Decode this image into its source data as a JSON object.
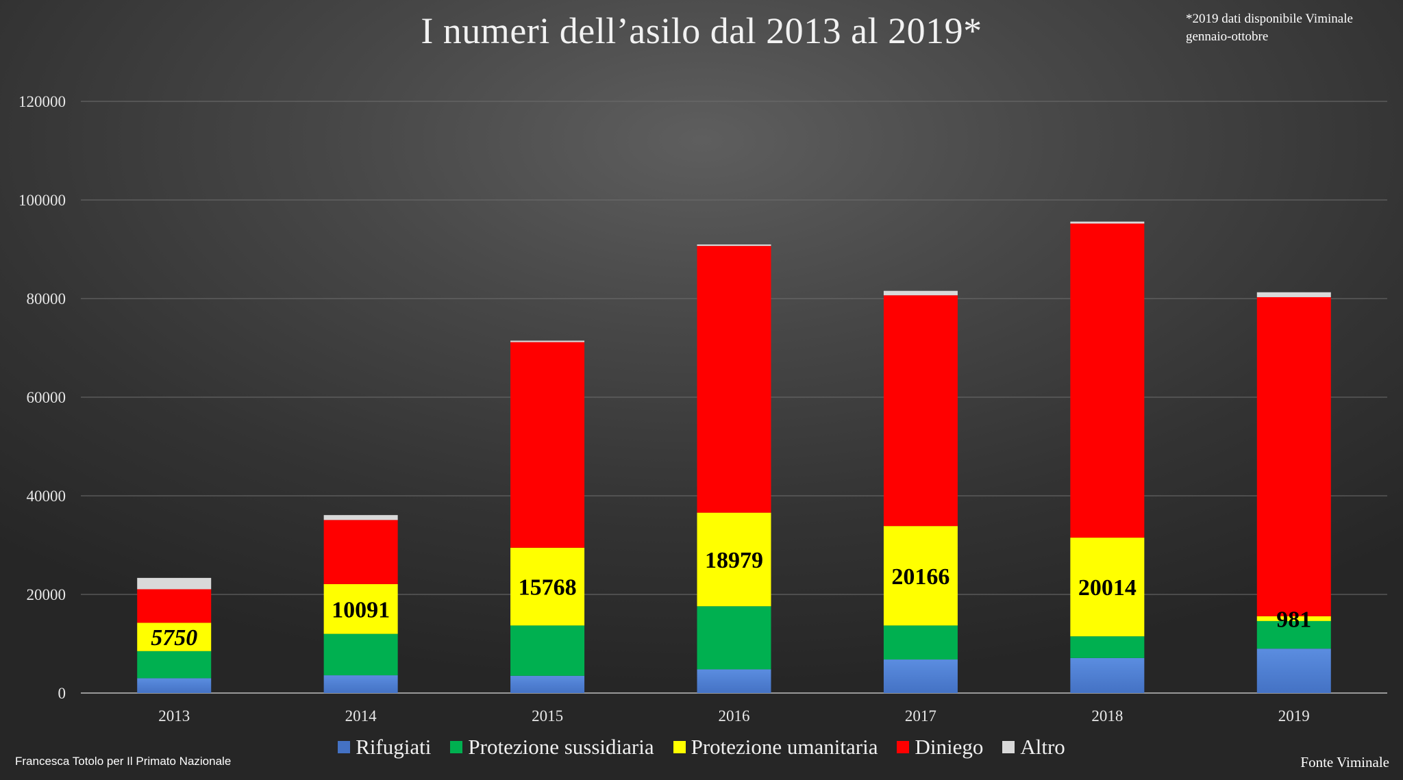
{
  "title": "I numeri dell’asilo dal 2013 al 2019*",
  "note_lines": [
    "*2019 dati disponibile Viminale",
    "gennaio-ottobre"
  ],
  "credit": "Francesca Totolo per Il Primato Nazionale",
  "source": "Fonte Viminale",
  "colors": {
    "rifugiati": "#4472c4",
    "sussidiaria": "#00b050",
    "umanitaria": "#ffff00",
    "diniego": "#ff0000",
    "altro": "#d9d9d9"
  },
  "chart_data": {
    "type": "bar",
    "stacked": true,
    "categories": [
      "2013",
      "2014",
      "2015",
      "2016",
      "2017",
      "2018",
      "2019"
    ],
    "series": [
      {
        "name": "Rifugiati",
        "color": "#4472c4",
        "values": [
          3000,
          3600,
          3500,
          4800,
          6800,
          7100,
          9000
        ]
      },
      {
        "name": "Protezione sussidiaria",
        "color": "#00b050",
        "values": [
          5500,
          8400,
          10200,
          12800,
          6900,
          4400,
          5600
        ]
      },
      {
        "name": "Protezione umanitaria",
        "color": "#ffff00",
        "values": [
          5750,
          10091,
          15768,
          18979,
          20166,
          20014,
          981
        ]
      },
      {
        "name": "Diniego",
        "color": "#ff0000",
        "values": [
          6800,
          13000,
          41700,
          54100,
          46800,
          63700,
          64700
        ]
      },
      {
        "name": "Altro",
        "color": "#d9d9d9",
        "values": [
          2300,
          1000,
          300,
          300,
          900,
          400,
          1000
        ]
      }
    ],
    "data_labels": {
      "series": "Protezione umanitaria",
      "values": [
        "5750",
        "10091",
        "15768",
        "18979",
        "20166",
        "20014",
        "981"
      ]
    },
    "y_ticks": [
      "0",
      "20000",
      "40000",
      "60000",
      "80000",
      "100000",
      "120000"
    ],
    "ylim": [
      0,
      120000
    ],
    "grid": true,
    "legend_position": "bottom"
  }
}
